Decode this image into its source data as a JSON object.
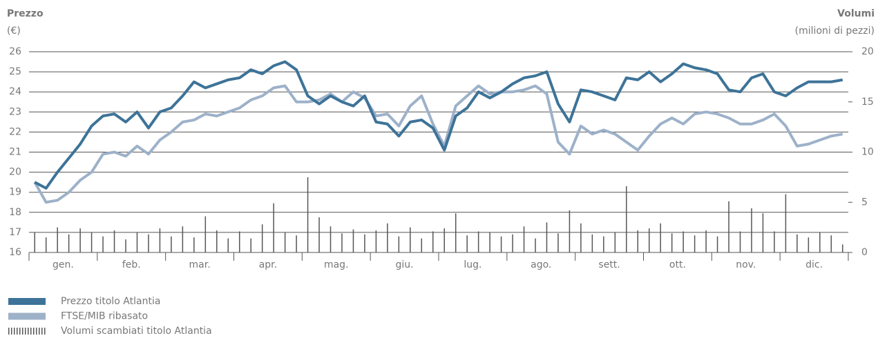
{
  "chart_data": {
    "type": "line",
    "y_label": "Prezzo",
    "y_unit": "(€)",
    "y2_label": "Volumi",
    "y2_unit": "(milioni di pezzi)",
    "categories": [
      null,
      null,
      "gen.",
      null,
      null,
      null,
      null,
      null,
      "feb.",
      null,
      null,
      null,
      null,
      null,
      "mar.",
      null,
      null,
      null,
      null,
      null,
      "apr.",
      null,
      null,
      null,
      null,
      null,
      "mag.",
      null,
      null,
      null,
      null,
      null,
      "giu.",
      null,
      null,
      null,
      null,
      null,
      "lug.",
      null,
      null,
      null,
      null,
      null,
      "ago.",
      null,
      null,
      null,
      null,
      null,
      "sett.",
      null,
      null,
      null,
      null,
      null,
      "ott.",
      null,
      null,
      null,
      null,
      null,
      "nov.",
      null,
      null,
      null,
      null,
      null,
      "dic.",
      null,
      null,
      null
    ],
    "series": [
      {
        "name": "Prezzo titolo Atlantia",
        "color": "#3d7398",
        "values": [
          19.5,
          19.2,
          20.0,
          20.7,
          21.4,
          22.3,
          22.8,
          22.9,
          22.5,
          23.0,
          22.2,
          23.0,
          23.2,
          23.8,
          24.5,
          24.2,
          24.4,
          24.6,
          24.7,
          25.1,
          24.9,
          25.3,
          25.5,
          25.1,
          23.8,
          23.4,
          23.8,
          23.5,
          23.3,
          23.8,
          22.5,
          22.4,
          21.8,
          22.5,
          22.6,
          22.2,
          21.1,
          22.8,
          23.2,
          24.0,
          23.7,
          24.0,
          24.4,
          24.7,
          24.8,
          25.0,
          23.4,
          22.5,
          24.1,
          24.0,
          23.8,
          23.6,
          24.7,
          24.6,
          25.0,
          24.5,
          24.9,
          25.4,
          25.2,
          25.1,
          24.9,
          24.1,
          24.0,
          24.7,
          24.9,
          24.0,
          23.8,
          24.2,
          24.5,
          24.5,
          24.5,
          24.6
        ]
      },
      {
        "name": "FTSE/MIB ribasato",
        "color": "#9db1c9",
        "values": [
          19.5,
          18.5,
          18.6,
          19.0,
          19.6,
          20.0,
          20.9,
          21.0,
          20.8,
          21.3,
          20.9,
          21.6,
          22.0,
          22.5,
          22.6,
          22.9,
          22.8,
          23.0,
          23.2,
          23.6,
          23.8,
          24.2,
          24.3,
          23.5,
          23.5,
          23.6,
          23.9,
          23.5,
          24.0,
          23.7,
          22.8,
          22.9,
          22.3,
          23.3,
          23.8,
          22.4,
          21.3,
          23.3,
          23.8,
          24.3,
          23.9,
          24.0,
          24.0,
          24.1,
          24.3,
          23.9,
          21.5,
          20.9,
          22.3,
          21.9,
          22.1,
          21.9,
          21.5,
          21.1,
          21.8,
          22.4,
          22.7,
          22.4,
          22.9,
          23.0,
          22.9,
          22.7,
          22.4,
          22.4,
          22.6,
          22.9,
          22.3,
          21.3,
          21.4,
          21.6,
          21.8,
          21.9
        ]
      },
      {
        "name": "Volumi scambiati titolo Atlantia",
        "color": "#555555",
        "axis": "y2",
        "type": "bar",
        "values": [
          2.0,
          1.5,
          2.5,
          1.8,
          2.4,
          2.0,
          1.6,
          2.2,
          1.3,
          2.0,
          1.8,
          2.4,
          1.6,
          2.6,
          1.5,
          3.6,
          2.2,
          1.4,
          2.1,
          1.4,
          2.8,
          4.9,
          2.0,
          1.7,
          7.5,
          3.5,
          2.6,
          1.9,
          2.3,
          1.8,
          2.2,
          2.9,
          1.6,
          2.5,
          1.4,
          2.1,
          2.4,
          3.9,
          1.7,
          2.1,
          2.0,
          1.6,
          1.8,
          2.6,
          1.4,
          3.0,
          1.9,
          4.2,
          2.9,
          1.8,
          1.6,
          2.0,
          6.6,
          2.2,
          2.4,
          2.9,
          1.9,
          2.1,
          1.7,
          2.2,
          1.6,
          5.1,
          2.1,
          4.4,
          3.9,
          2.1,
          5.8,
          1.8,
          1.5,
          2.0,
          1.7,
          0.8
        ]
      }
    ],
    "ylim": [
      16,
      26
    ],
    "yticks": [
      16,
      17,
      18,
      19,
      20,
      21,
      22,
      23,
      24,
      25,
      26
    ],
    "y2lim": [
      0,
      20
    ],
    "y2ticks": [
      0,
      5,
      10,
      15,
      20
    ],
    "grid": true,
    "legend": "bottom-left"
  }
}
